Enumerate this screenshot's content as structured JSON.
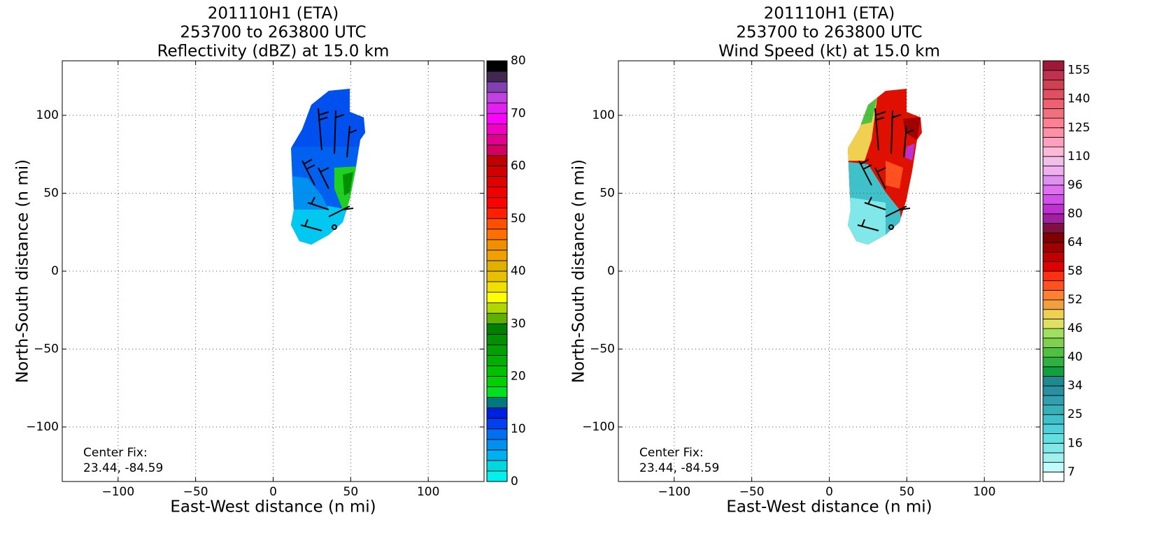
{
  "chart_data": [
    {
      "type": "heatmap",
      "title": [
        "201110H1 (ETA)",
        "253700 to 263800 UTC",
        "Reflectivity (dBZ) at 15.0 km"
      ],
      "xlabel": "East-West distance (n mi)",
      "ylabel": "North-South distance (n mi)",
      "xlim": [
        -136,
        136
      ],
      "ylim": [
        -135,
        135
      ],
      "xticks": [
        {
          "value": -100,
          "label": "−100"
        },
        {
          "value": -50,
          "label": "−50"
        },
        0,
        50,
        100
      ],
      "yticks": [
        {
          "value": -100,
          "label": "−100"
        },
        {
          "value": -50,
          "label": "−50"
        },
        0,
        50,
        100
      ],
      "grid": true,
      "annotation": [
        "Center Fix:",
        "23.44, -84.59"
      ],
      "colorbar": {
        "levels": [
          0,
          2,
          4,
          6,
          8,
          10,
          12,
          14,
          16,
          18,
          20,
          22,
          24,
          26,
          28,
          30,
          32,
          34,
          36,
          38,
          40,
          42,
          44,
          46,
          48,
          50,
          52,
          54,
          56,
          58,
          60,
          62,
          64,
          66,
          68,
          70,
          72,
          74,
          76,
          78,
          80
        ],
        "colors": [
          "#00f0f0",
          "#00d8e0",
          "#00b0f0",
          "#0090f0",
          "#0070f0",
          "#0040f0",
          "#0020e0",
          "#007880",
          "#00e020",
          "#00d000",
          "#00c000",
          "#00b000",
          "#00a000",
          "#009000",
          "#008000",
          "#60b000",
          "#b0d800",
          "#ffff00",
          "#f0e000",
          "#e8c000",
          "#e0b000",
          "#f0a000",
          "#f09000",
          "#ff7000",
          "#ff5000",
          "#ff2000",
          "#ff0000",
          "#f00000",
          "#e00000",
          "#d00000",
          "#c00000",
          "#d00060",
          "#e00090",
          "#f000c0",
          "#ff00ff",
          "#e020f0",
          "#c040e0",
          "#8040b0",
          "#402850",
          "#000000"
        ],
        "ticks": [
          0,
          10,
          20,
          30,
          40,
          50,
          60,
          70,
          80
        ]
      }
    },
    {
      "type": "heatmap",
      "title": [
        "201110H1 (ETA)",
        "253700 to 263800 UTC",
        "Wind Speed (kt) at 15.0 km"
      ],
      "xlabel": "East-West distance (n mi)",
      "ylabel": "North-South distance (n mi)",
      "xlim": [
        -136,
        136
      ],
      "ylim": [
        -135,
        135
      ],
      "xticks": [
        {
          "value": -100,
          "label": "−100"
        },
        {
          "value": -50,
          "label": "−50"
        },
        0,
        50,
        100
      ],
      "yticks": [
        {
          "value": -100,
          "label": "−100"
        },
        {
          "value": -50,
          "label": "−50"
        },
        0,
        50,
        100
      ],
      "grid": true,
      "annotation": [
        "Center Fix:",
        "23.44, -84.59"
      ],
      "colorbar": {
        "levels": [
          4,
          7,
          10,
          13,
          16,
          19,
          22,
          25,
          28,
          31,
          34,
          36,
          38,
          40,
          42,
          44,
          46,
          48,
          50,
          52,
          54,
          56,
          58,
          60,
          62,
          64,
          69,
          75,
          80,
          85,
          91,
          96,
          101,
          106,
          110,
          115,
          120,
          125,
          130,
          135,
          140,
          145,
          150,
          155,
          160
        ],
        "colors": [
          "#ffffff",
          "#c0fafa",
          "#a0f0f0",
          "#80e8e8",
          "#60e0e0",
          "#50d0d8",
          "#40c0c8",
          "#38b0b8",
          "#30a0b0",
          "#2890a0",
          "#208890",
          "#10a040",
          "#30b040",
          "#50c040",
          "#80d050",
          "#a0e060",
          "#e0e060",
          "#f0d050",
          "#f0a040",
          "#ff8030",
          "#ff5020",
          "#ff3010",
          "#e00000",
          "#c00000",
          "#a00000",
          "#800000",
          "#801040",
          "#a020a0",
          "#c030d0",
          "#d050e8",
          "#e070f0",
          "#e090f0",
          "#f0b0f0",
          "#f0c0e8",
          "#ffb8d8",
          "#ffa0c0",
          "#ff90a8",
          "#ff8090",
          "#f07080",
          "#f06070",
          "#e05060",
          "#d04050",
          "#c03050",
          "#a01838"
        ],
        "ticks": [
          7,
          16,
          25,
          34,
          40,
          46,
          52,
          58,
          64,
          80,
          96,
          110,
          125,
          140,
          155
        ]
      }
    }
  ]
}
